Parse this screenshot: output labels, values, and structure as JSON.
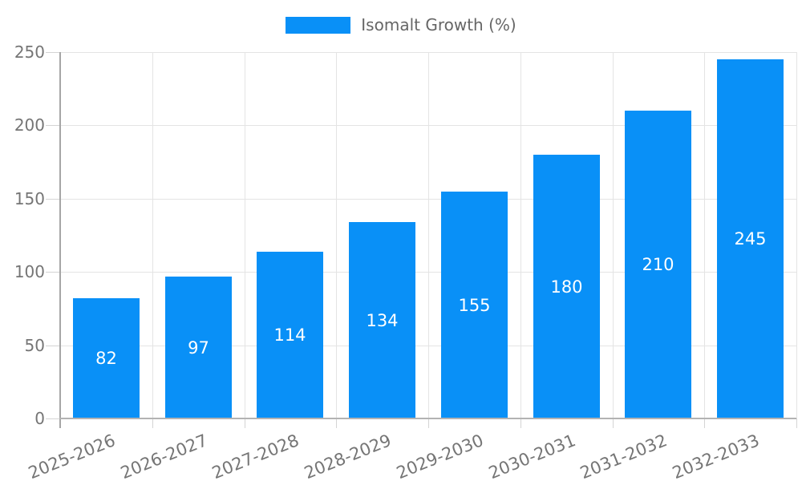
{
  "chart_data": {
    "type": "bar",
    "title": "",
    "categories": [
      "2025-2026",
      "2026-2027",
      "2027-2028",
      "2028-2029",
      "2029-2030",
      "2030-2031",
      "2031-2032",
      "2032-2033"
    ],
    "series": [
      {
        "name": "Isomalt Growth (%)",
        "values": [
          82,
          97,
          114,
          134,
          155,
          180,
          210,
          245
        ]
      }
    ],
    "value_labels": [
      "82",
      "97",
      "114",
      "134",
      "155",
      "180",
      "210",
      "245"
    ],
    "ylim": [
      0,
      250
    ],
    "yticks": [
      0,
      50,
      100,
      150,
      200,
      250
    ],
    "ytick_labels": [
      "0",
      "50",
      "100",
      "150",
      "200",
      "250"
    ],
    "xlabel": "",
    "ylabel": "",
    "legend_position": "top",
    "grid": true,
    "colors": {
      "bar": "#0990f7",
      "value_label": "#ffffff",
      "grid": "#e4e4e4",
      "tick": "#d4d4d4",
      "axis": "#a6a6a6",
      "tick_label": "#757575",
      "legend_text": "#666666",
      "background": "#ffffff"
    }
  }
}
